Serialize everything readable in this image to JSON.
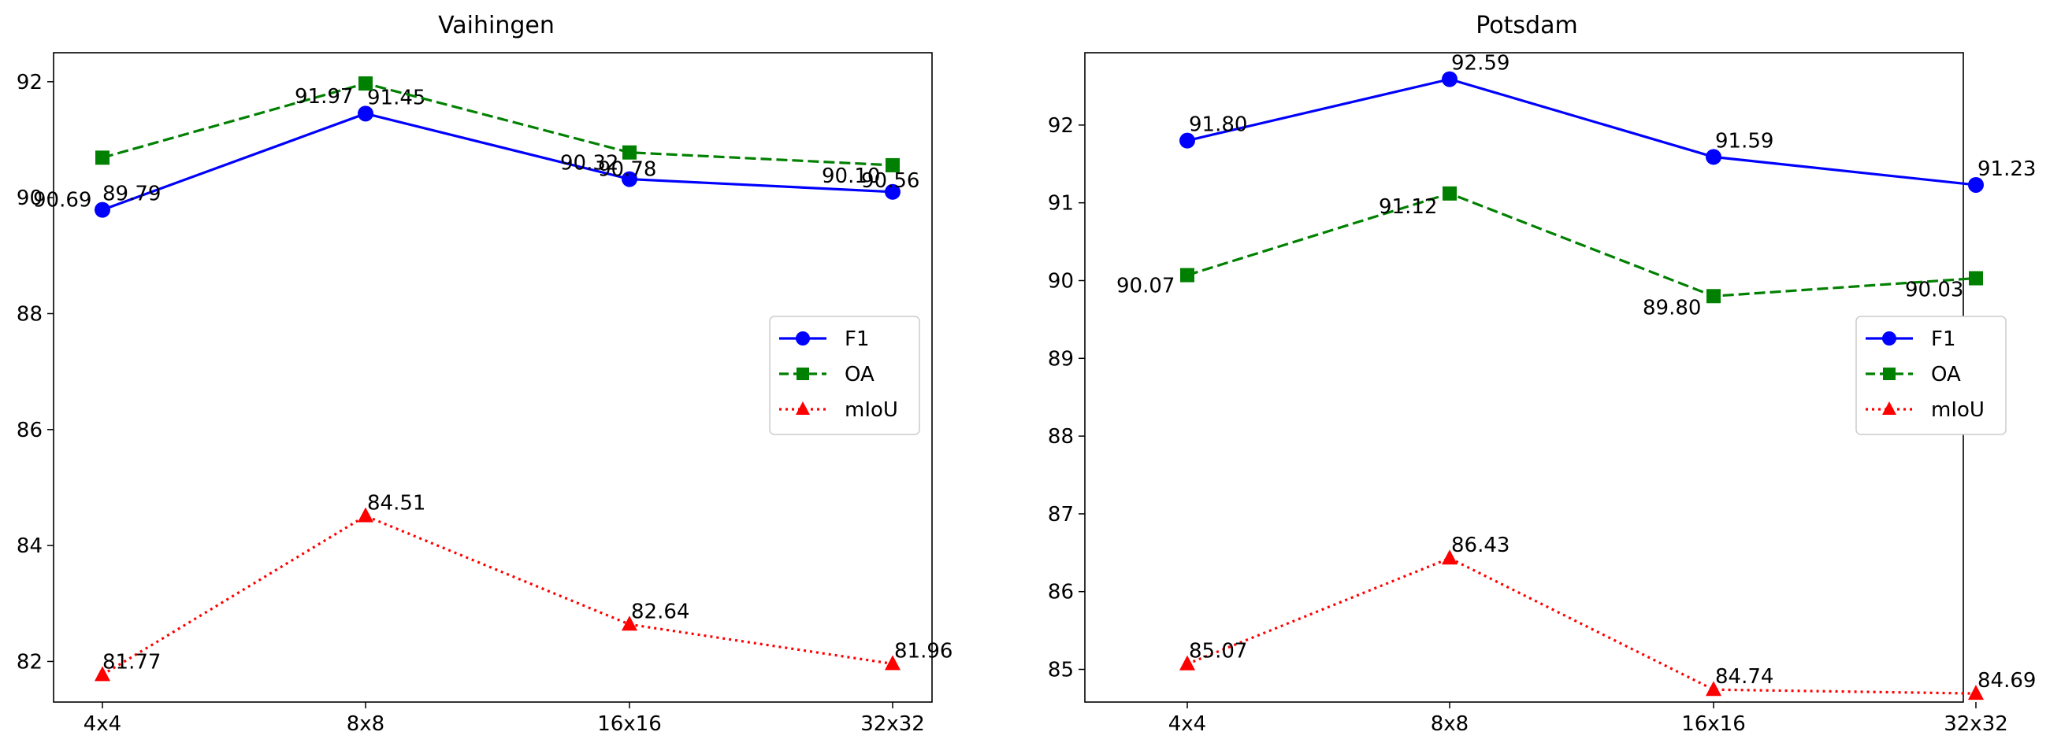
{
  "chart_data": [
    {
      "type": "line",
      "title": "Vaihingen",
      "categories": [
        "4x4",
        "8x8",
        "16x16",
        "32x32"
      ],
      "ylim": [
        81.3,
        92.5
      ],
      "yticks": [
        82,
        84,
        86,
        88,
        90,
        92
      ],
      "grid": false,
      "legend_position": "center-right",
      "series": [
        {
          "name": "F1",
          "values": [
            89.79,
            91.45,
            90.32,
            90.1
          ],
          "labels": [
            "89.79",
            "91.45",
            "90.32",
            "90.10"
          ],
          "color": "#0000ff",
          "style": "solid",
          "marker": "circle"
        },
        {
          "name": "OA",
          "values": [
            90.69,
            91.97,
            90.78,
            90.56
          ],
          "labels": [
            "90.69",
            "91.97",
            "90.78",
            "90.56"
          ],
          "color": "#008000",
          "style": "dashed",
          "marker": "square"
        },
        {
          "name": "mIoU",
          "values": [
            81.77,
            84.51,
            82.64,
            81.96
          ],
          "labels": [
            "81.77",
            "84.51",
            "82.64",
            "81.96"
          ],
          "color": "#ff0000",
          "style": "dotted",
          "marker": "triangle"
        }
      ]
    },
    {
      "type": "line",
      "title": "Potsdam",
      "categories": [
        "4x4",
        "8x8",
        "16x16",
        "32x32"
      ],
      "ylim": [
        84.58,
        92.93
      ],
      "yticks": [
        85,
        86,
        87,
        88,
        89,
        90,
        91,
        92
      ],
      "grid": false,
      "legend_position": "center-right",
      "series": [
        {
          "name": "F1",
          "values": [
            91.8,
            92.59,
            91.59,
            91.23
          ],
          "labels": [
            "91.80",
            "92.59",
            "91.59",
            "91.23"
          ],
          "color": "#0000ff",
          "style": "solid",
          "marker": "circle"
        },
        {
          "name": "OA",
          "values": [
            90.07,
            91.12,
            89.8,
            90.03
          ],
          "labels": [
            "90.07",
            "91.12",
            "89.80",
            "90.03"
          ],
          "color": "#008000",
          "style": "dashed",
          "marker": "square"
        },
        {
          "name": "mIoU",
          "values": [
            85.07,
            86.43,
            84.74,
            84.69
          ],
          "labels": [
            "85.07",
            "86.43",
            "84.74",
            "84.69"
          ],
          "color": "#ff0000",
          "style": "dotted",
          "marker": "triangle"
        }
      ]
    }
  ]
}
